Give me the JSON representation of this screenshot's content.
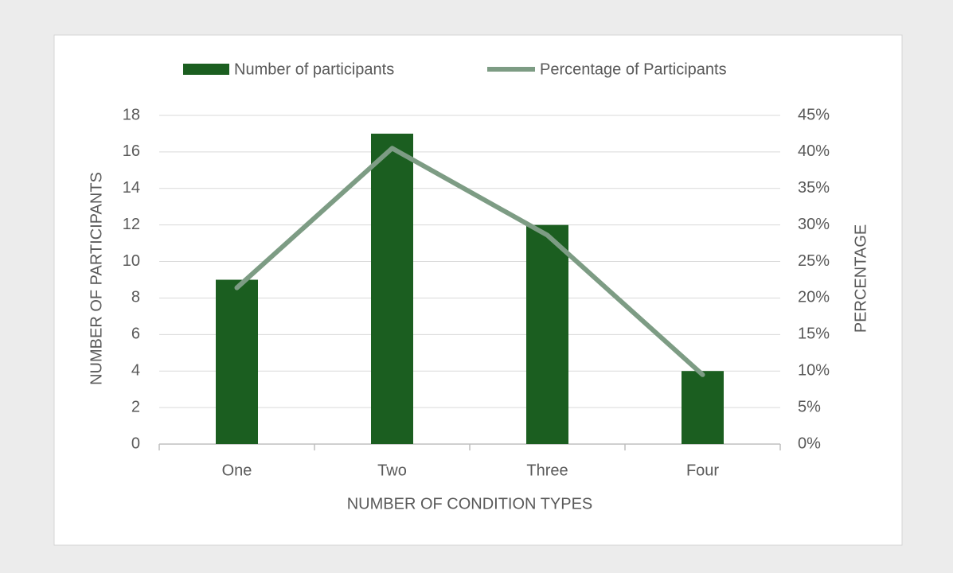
{
  "chart_data": {
    "type": "bar_line",
    "categories": [
      "One",
      "Two",
      "Three",
      "Four"
    ],
    "series": [
      {
        "name": "Number of participants",
        "color": "#1b5e20",
        "type": "bar",
        "values": [
          9,
          17,
          12,
          4
        ]
      },
      {
        "name": "Percentage of Participants",
        "color": "#7d9c84",
        "type": "line",
        "axis": "y2",
        "values": [
          21.4,
          40.5,
          28.6,
          9.5
        ]
      }
    ],
    "xlabel": "NUMBER OF CONDITION TYPES",
    "ylabel": "NUMBER OF PARTICIPANTS",
    "y2label": "PERCENTAGE",
    "ylim": [
      0,
      18
    ],
    "yticks": [
      0,
      2,
      4,
      6,
      8,
      10,
      12,
      14,
      16,
      18
    ],
    "y2lim": [
      0,
      45
    ],
    "y2ticks": [
      {
        "value": 0,
        "label": "0%"
      },
      {
        "value": 5,
        "label": "5%"
      },
      {
        "value": 10,
        "label": "10%"
      },
      {
        "value": 15,
        "label": "15%"
      },
      {
        "value": 20,
        "label": "20%"
      },
      {
        "value": 25,
        "label": "25%"
      },
      {
        "value": 30,
        "label": "30%"
      },
      {
        "value": 35,
        "label": "35%"
      },
      {
        "value": 40,
        "label": "40%"
      },
      {
        "value": 45,
        "label": "45%"
      }
    ],
    "grid": true,
    "legend": "top"
  }
}
